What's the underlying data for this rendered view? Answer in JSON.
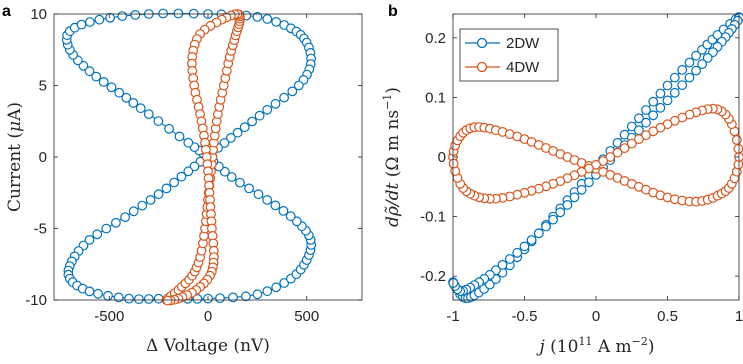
{
  "colors": {
    "series_2dw": "#0072BD",
    "series_4dw": "#D95319",
    "axis": "#262626"
  },
  "chart_data": [
    {
      "type": "scatter",
      "panel_label": "a",
      "xlabel_prefix": "Δ",
      "xlabel": "Voltage (nV)",
      "ylabel": "Current (",
      "ylabel_mu": "μ",
      "ylabel_suffix": "A)",
      "xlim": [
        -780,
        780
      ],
      "ylim": [
        -10,
        10
      ],
      "xticks": [
        -500,
        0,
        500
      ],
      "xtick_labels": [
        "-500",
        "0",
        "500"
      ],
      "yticks": [
        -10,
        -5,
        0,
        5,
        10
      ],
      "ytick_labels": [
        "-10",
        "-5",
        "0",
        "5",
        "10"
      ],
      "grid": false,
      "series": [
        {
          "key": "2DW",
          "color_key": "series_2dw",
          "shape": "figure-eight hysteresis loop",
          "points": [
            [
              0,
              10
            ],
            [
              250,
              9.8
            ],
            [
              420,
              9.0
            ],
            [
              500,
              8.0
            ],
            [
              520,
              6.5
            ],
            [
              460,
              5.0
            ],
            [
              300,
              3.3
            ],
            [
              150,
              1.7
            ],
            [
              20,
              0.3
            ],
            [
              -100,
              -1.0
            ],
            [
              -250,
              -2.6
            ],
            [
              -420,
              -4.2
            ],
            [
              -600,
              -5.8
            ],
            [
              -690,
              -7.3
            ],
            [
              -700,
              -8.5
            ],
            [
              -600,
              -9.4
            ],
            [
              -400,
              -9.9
            ],
            [
              -200,
              -9.9
            ],
            [
              0,
              -9.9
            ],
            [
              250,
              -9.6
            ],
            [
              420,
              -8.5
            ],
            [
              500,
              -7.2
            ],
            [
              520,
              -5.8
            ],
            [
              450,
              -4.5
            ],
            [
              300,
              -3.0
            ],
            [
              120,
              -1.4
            ],
            [
              0,
              0
            ],
            [
              -100,
              1.0
            ],
            [
              -300,
              3.0
            ],
            [
              -450,
              4.5
            ],
            [
              -600,
              6.0
            ],
            [
              -700,
              7.5
            ],
            [
              -700,
              8.8
            ],
            [
              -550,
              9.6
            ],
            [
              -300,
              10
            ]
          ]
        },
        {
          "key": "4DW",
          "color_key": "series_4dw",
          "shape": "narrow twisted loop",
          "points": [
            [
              -210,
              -10
            ],
            [
              -150,
              -9.3
            ],
            [
              -80,
              -8.3
            ],
            [
              -40,
              -7.0
            ],
            [
              -15,
              -5.0
            ],
            [
              0,
              -3.0
            ],
            [
              15,
              -1.0
            ],
            [
              30,
              1.0
            ],
            [
              50,
              3.0
            ],
            [
              80,
              5.0
            ],
            [
              110,
              7.0
            ],
            [
              140,
              8.5
            ],
            [
              160,
              9.5
            ],
            [
              150,
              10
            ],
            [
              70,
              9.6
            ],
            [
              -40,
              8.6
            ],
            [
              -80,
              7.0
            ],
            [
              -70,
              5.0
            ],
            [
              -40,
              3.0
            ],
            [
              -15,
              1.0
            ],
            [
              0,
              -1.0
            ],
            [
              10,
              -3.0
            ],
            [
              20,
              -5.0
            ],
            [
              30,
              -7.0
            ],
            [
              10,
              -8.3
            ],
            [
              -60,
              -9.3
            ],
            [
              -150,
              -9.9
            ]
          ]
        }
      ]
    },
    {
      "type": "scatter",
      "panel_label": "b",
      "xlabel": "j",
      "xlabel_units": "(10",
      "xlabel_exp": "11",
      "xlabel_units2": "A m",
      "xlabel_exp2": "−2",
      "xlabel_close": ")",
      "ylabel": "dρ̃/dt",
      "ylabel_units": "(Ω m ns",
      "ylabel_exp": "−1",
      "ylabel_close": ")",
      "xlim": [
        -1,
        1
      ],
      "ylim": [
        -0.24,
        0.24
      ],
      "xticks": [
        -1,
        -0.5,
        0,
        0.5,
        1
      ],
      "xtick_labels": [
        "-1",
        "-0.5",
        "0",
        "0.5",
        "1"
      ],
      "yticks": [
        -0.2,
        -0.1,
        0,
        0.1,
        0.2
      ],
      "ytick_labels": [
        "-0.2",
        "-0.1",
        "0",
        "0.1",
        "0.2"
      ],
      "grid": false,
      "legend": {
        "placement": "top-left",
        "entries": [
          "2DW",
          "4DW"
        ]
      },
      "series": [
        {
          "name": "2DW",
          "color_key": "series_2dw",
          "shape": "narrow hysteresis loop along the diagonal",
          "points": [
            [
              -1.0,
              -0.21
            ],
            [
              -0.93,
              -0.235
            ],
            [
              -0.85,
              -0.232
            ],
            [
              -0.7,
              -0.205
            ],
            [
              -0.5,
              -0.155
            ],
            [
              -0.3,
              -0.1
            ],
            [
              -0.1,
              -0.045
            ],
            [
              0.1,
              0.01
            ],
            [
              0.3,
              0.065
            ],
            [
              0.5,
              0.12
            ],
            [
              0.7,
              0.17
            ],
            [
              0.85,
              0.205
            ],
            [
              1.0,
              0.235
            ],
            [
              0.95,
              0.215
            ],
            [
              0.85,
              0.185
            ],
            [
              0.7,
              0.145
            ],
            [
              0.5,
              0.095
            ],
            [
              0.3,
              0.045
            ],
            [
              0.1,
              -0.005
            ],
            [
              -0.1,
              -0.055
            ],
            [
              -0.3,
              -0.105
            ],
            [
              -0.5,
              -0.15
            ],
            [
              -0.7,
              -0.19
            ],
            [
              -0.85,
              -0.215
            ],
            [
              -0.95,
              -0.225
            ]
          ]
        },
        {
          "name": "4DW",
          "color_key": "series_4dw",
          "shape": "figure-eight (bow-tie) loop",
          "points": [
            [
              -1.0,
              0.0
            ],
            [
              -0.95,
              0.035
            ],
            [
              -0.85,
              0.05
            ],
            [
              -0.7,
              0.045
            ],
            [
              -0.5,
              0.03
            ],
            [
              -0.3,
              0.01
            ],
            [
              -0.1,
              -0.01
            ],
            [
              0.1,
              -0.03
            ],
            [
              0.3,
              -0.05
            ],
            [
              0.5,
              -0.068
            ],
            [
              0.7,
              -0.075
            ],
            [
              0.85,
              -0.065
            ],
            [
              0.95,
              -0.045
            ],
            [
              1.0,
              0.0
            ],
            [
              0.95,
              0.055
            ],
            [
              0.85,
              0.08
            ],
            [
              0.7,
              0.075
            ],
            [
              0.5,
              0.055
            ],
            [
              0.3,
              0.03
            ],
            [
              0.1,
              0.0
            ],
            [
              -0.1,
              -0.025
            ],
            [
              -0.3,
              -0.045
            ],
            [
              -0.5,
              -0.06
            ],
            [
              -0.7,
              -0.07
            ],
            [
              -0.85,
              -0.065
            ],
            [
              -0.95,
              -0.045
            ]
          ]
        }
      ]
    }
  ]
}
